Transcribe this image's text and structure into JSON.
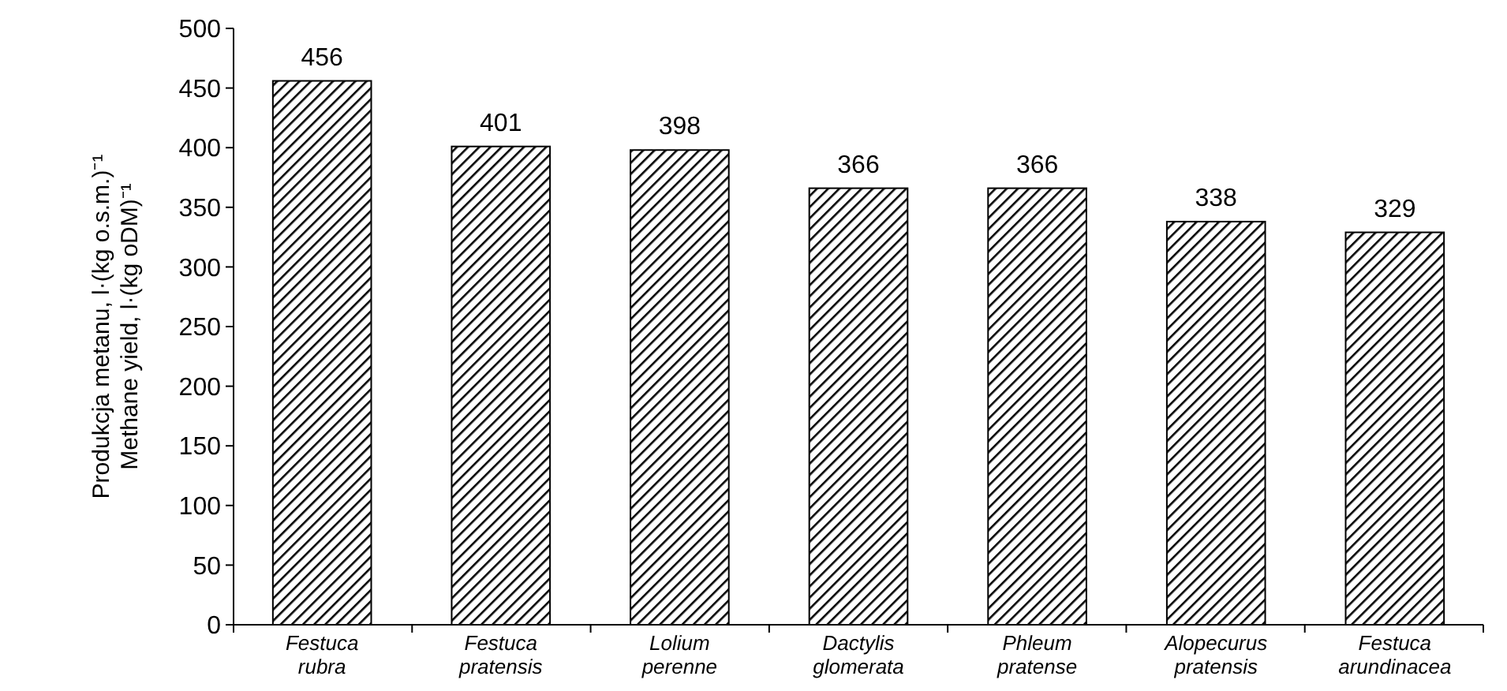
{
  "chart_data": {
    "type": "bar",
    "ylabel": "Produkcja metanu, l·(kg o.s.m.)⁻¹\nMethane yield, l·(kg oDM)⁻¹",
    "categories": [
      "Festuca rubra",
      "Festuca pratensis",
      "Lolium perenne",
      "Dactylis glomerata",
      "Phleum pratense",
      "Alopecurus pratensis",
      "Festuca arundinacea"
    ],
    "values": [
      456,
      401,
      398,
      366,
      366,
      338,
      329
    ],
    "color": "#000000",
    "ylim": [
      0,
      500
    ],
    "yticks": [
      0,
      50,
      100,
      150,
      200,
      250,
      300,
      350,
      400,
      450,
      500
    ],
    "data_labels": true,
    "grid": false
  }
}
